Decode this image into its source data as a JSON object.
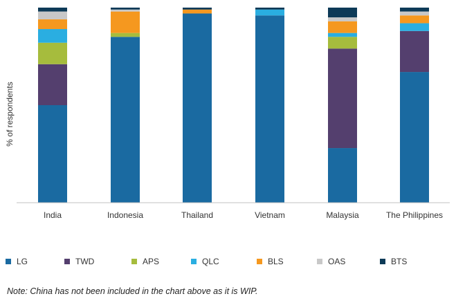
{
  "chart_data": {
    "type": "bar",
    "stacked": true,
    "percent_stacked": true,
    "categories": [
      "India",
      "Indonesia",
      "Thailand",
      "Vietnam",
      "Malaysia",
      "The Philippines"
    ],
    "series": [
      {
        "name": "LG",
        "color": "#1a6aa1",
        "values": [
          50,
          85,
          97,
          96,
          28,
          67
        ]
      },
      {
        "name": "TWD",
        "color": "#543f6e",
        "values": [
          21,
          0,
          0,
          0,
          51,
          21
        ]
      },
      {
        "name": "APS",
        "color": "#a6bc3d",
        "values": [
          11,
          2,
          0,
          0,
          6,
          0
        ]
      },
      {
        "name": "QLC",
        "color": "#2aaee1",
        "values": [
          7,
          0,
          0,
          3,
          2,
          4
        ]
      },
      {
        "name": "BLS",
        "color": "#f5981f",
        "values": [
          5,
          11,
          2,
          0,
          6,
          4
        ]
      },
      {
        "name": "OAS",
        "color": "#c8c8c8",
        "values": [
          4,
          1,
          0,
          0,
          2,
          2
        ]
      },
      {
        "name": "BTS",
        "color": "#0d3a57",
        "values": [
          2,
          1,
          1,
          1,
          5,
          2
        ]
      }
    ],
    "title": "",
    "xlabel": "",
    "ylabel": "% of respondents",
    "ylim": [
      0,
      100
    ],
    "grid": false,
    "legend_position": "bottom"
  },
  "note": "Note: China has not been included in the chart above as it is WIP."
}
